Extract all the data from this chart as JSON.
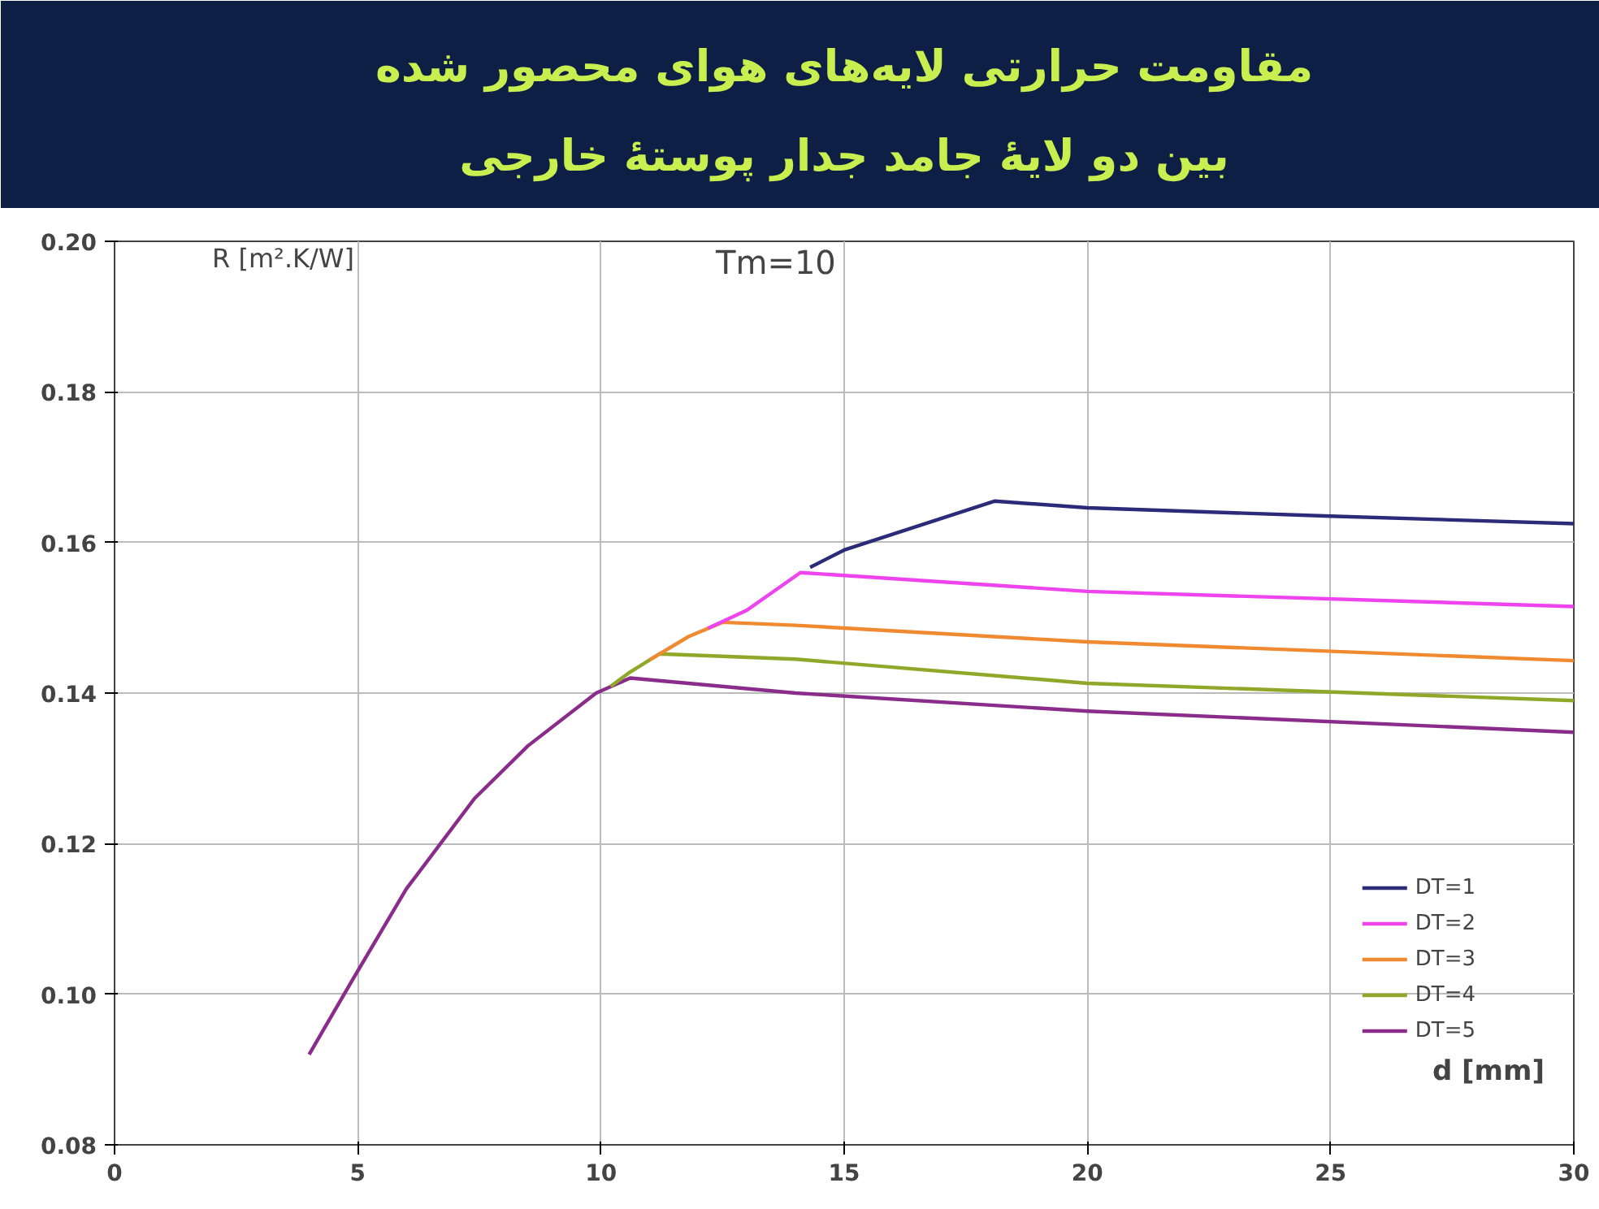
{
  "chart_data": {
    "type": "line",
    "title": "مقاومت حرارتی لایه‌های هوای محصور شده",
    "subtitle": "بین دو لایهٔ جامد جدار پوستهٔ خارجی",
    "xlabel": "d [mm]",
    "ylabel": "R [m².K/W]",
    "annotations": [
      "Tm=10"
    ],
    "xlim": [
      0,
      30
    ],
    "xticks": [
      0,
      5,
      10,
      15,
      20,
      25,
      30
    ],
    "ylim": [
      0.08,
      0.2
    ],
    "yticks": [
      0.08,
      {
        "value": 0.1,
        "label": "0.10"
      },
      0.12,
      0.14,
      0.16,
      0.18,
      {
        "value": 0.2,
        "label": "0.20"
      }
    ],
    "grid": true,
    "legend": "bottom right",
    "marker": "none",
    "line_style": "solid",
    "series": [
      {
        "name": "DT=1",
        "color": "#2b2b7a",
        "x": [
          14.3,
          15,
          18.1,
          20,
          25,
          30
        ],
        "values": [
          0.1567,
          0.159,
          0.1655,
          0.1646,
          0.1635,
          0.1625
        ]
      },
      {
        "name": "DT=2",
        "color": "#ee44ee",
        "x": [
          12.2,
          13,
          14.1,
          20,
          30
        ],
        "values": [
          0.1486,
          0.151,
          0.156,
          0.1535,
          0.1515
        ]
      },
      {
        "name": "DT=3",
        "color": "#f08a30",
        "x": [
          11,
          11.8,
          12.5,
          14,
          20,
          30
        ],
        "values": [
          0.1444,
          0.1475,
          0.1494,
          0.149,
          0.1468,
          0.1443
        ]
      },
      {
        "name": "DT=4",
        "color": "#8fa82a",
        "x": [
          10.2,
          10.6,
          11.2,
          14,
          20,
          30
        ],
        "values": [
          0.1409,
          0.1428,
          0.1452,
          0.1445,
          0.1413,
          0.139
        ]
      },
      {
        "name": "DT=5",
        "color": "#8a2c8a",
        "x": [
          4,
          4.9,
          6,
          7.4,
          8.5,
          9.9,
          10.6,
          14,
          20,
          30
        ],
        "values": [
          0.092,
          0.102,
          0.114,
          0.126,
          0.133,
          0.14,
          0.142,
          0.14,
          0.1376,
          0.1348
        ]
      }
    ]
  }
}
